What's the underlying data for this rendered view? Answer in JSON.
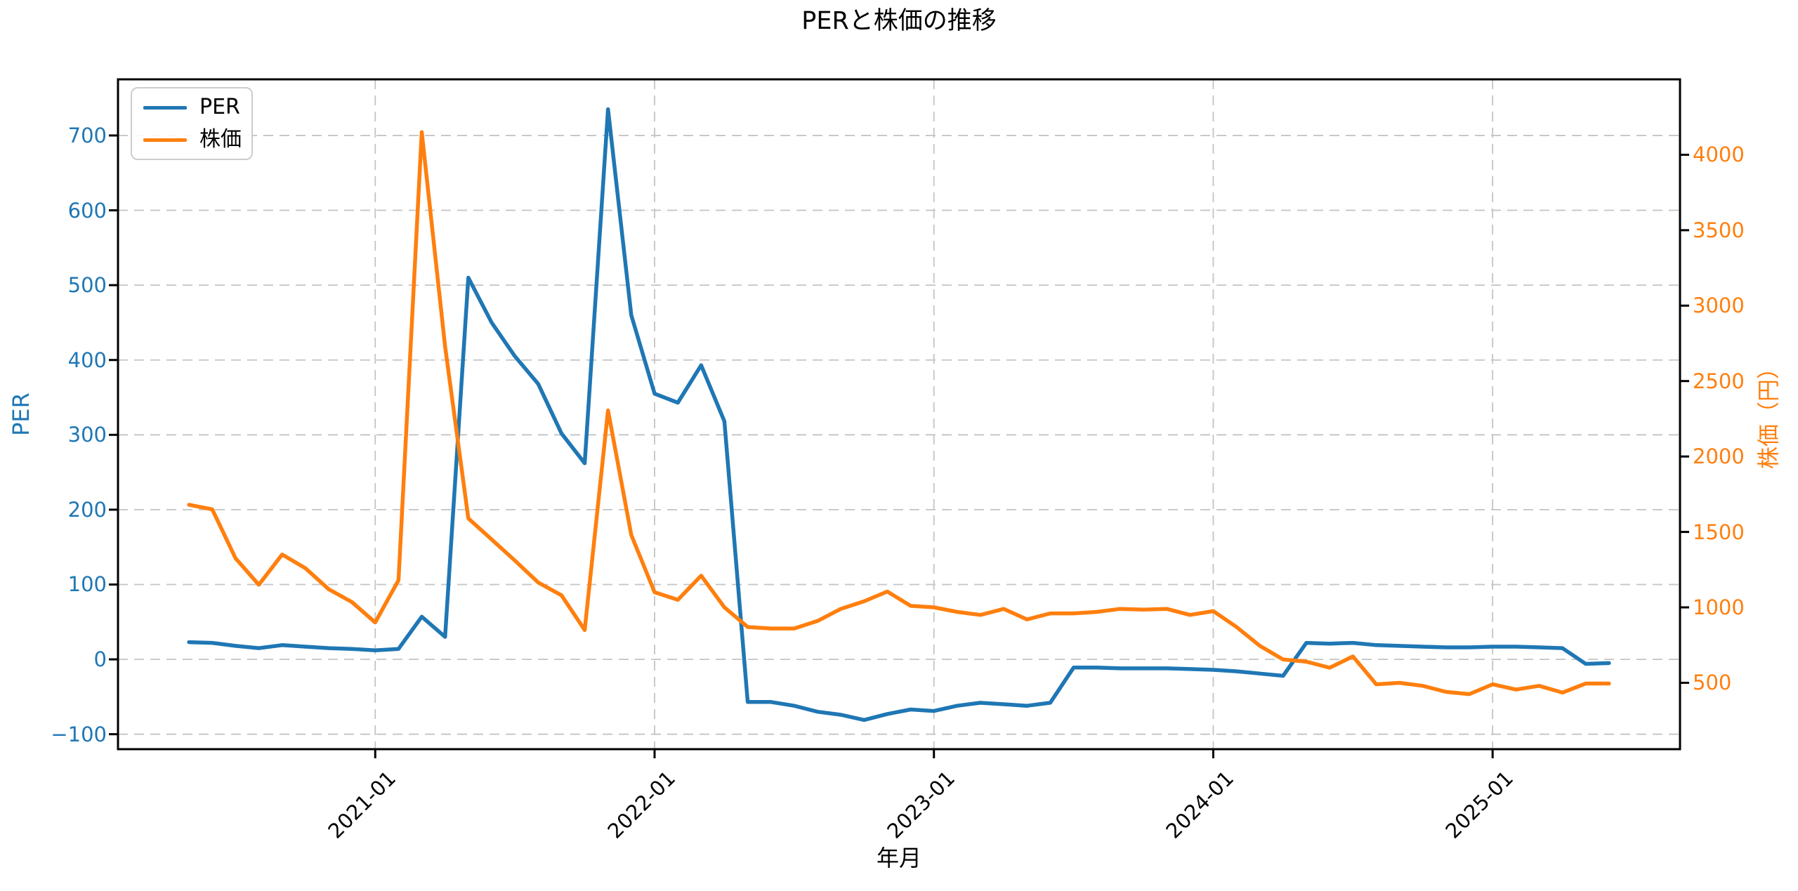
{
  "chart_data": {
    "type": "line",
    "title": "PERと株価の推移",
    "xlabel": "年月",
    "ylabel_left": "PER",
    "ylabel_right": "株価（円）",
    "grid": true,
    "grid_color": "#c4c4c4",
    "legend_position": "upper-left",
    "axis_label_colors": {
      "left": "#1f77b4",
      "right": "#ff7f0e",
      "x": "#000000"
    },
    "x": [
      "2020-05",
      "2020-06",
      "2020-07",
      "2020-08",
      "2020-09",
      "2020-10",
      "2020-11",
      "2020-12",
      "2021-01",
      "2021-02",
      "2021-03",
      "2021-04",
      "2021-05",
      "2021-06",
      "2021-07",
      "2021-08",
      "2021-09",
      "2021-10",
      "2021-11",
      "2021-12",
      "2022-01",
      "2022-02",
      "2022-03",
      "2022-04",
      "2022-05",
      "2022-06",
      "2022-07",
      "2022-08",
      "2022-09",
      "2022-10",
      "2022-11",
      "2022-12",
      "2023-01",
      "2023-02",
      "2023-03",
      "2023-04",
      "2023-05",
      "2023-06",
      "2023-07",
      "2023-08",
      "2023-09",
      "2023-10",
      "2023-11",
      "2023-12",
      "2024-01",
      "2024-02",
      "2024-03",
      "2024-04",
      "2024-05",
      "2024-06",
      "2024-07",
      "2024-08",
      "2024-09",
      "2024-10",
      "2024-11",
      "2024-12",
      "2025-01",
      "2025-02",
      "2025-03",
      "2025-04",
      "2025-05",
      "2025-06"
    ],
    "series": [
      {
        "name": "PER",
        "axis": "left",
        "color": "#1f77b4",
        "values": [
          23,
          22,
          18,
          15,
          19,
          17,
          15,
          14,
          12,
          14,
          57,
          30,
          510,
          450,
          405,
          368,
          302,
          262,
          735,
          460,
          355,
          343,
          393,
          318,
          -57,
          -57,
          -62,
          -70,
          -74,
          -81,
          -73,
          -67,
          -69,
          -62,
          -58,
          -60,
          -62,
          -58,
          -11,
          -11,
          -12,
          -12,
          -12,
          -13,
          -14,
          -16,
          -19,
          -22,
          22,
          21,
          22,
          19,
          18,
          17,
          16,
          16,
          17,
          17,
          16,
          15,
          -6,
          -5
        ]
      },
      {
        "name": "株価",
        "axis": "right",
        "color": "#ff7f0e",
        "values": [
          1680,
          1650,
          1325,
          1150,
          1350,
          1260,
          1120,
          1035,
          900,
          1180,
          4150,
          2730,
          1590,
          1450,
          1310,
          1165,
          1080,
          850,
          2305,
          1480,
          1100,
          1050,
          1210,
          1000,
          870,
          860,
          860,
          910,
          990,
          1040,
          1105,
          1010,
          1000,
          970,
          950,
          990,
          920,
          960,
          960,
          970,
          990,
          985,
          990,
          950,
          975,
          870,
          745,
          655,
          640,
          600,
          675,
          490,
          500,
          480,
          440,
          425,
          490,
          455,
          480,
          435,
          495,
          495
        ]
      }
    ],
    "x_ticks": [
      {
        "label": "2021-01",
        "index": 8
      },
      {
        "label": "2022-01",
        "index": 20
      },
      {
        "label": "2023-01",
        "index": 32
      },
      {
        "label": "2024-01",
        "index": 44
      },
      {
        "label": "2025-01",
        "index": 56
      }
    ],
    "x_margin_months": 3.05,
    "y_left": {
      "ticks": [
        -100,
        0,
        100,
        200,
        300,
        400,
        500,
        600,
        700
      ],
      "lim": [
        -120,
        775
      ]
    },
    "y_right": {
      "ticks": [
        500,
        1000,
        1500,
        2000,
        2500,
        3000,
        3500,
        4000
      ],
      "lim": [
        60,
        4500
      ]
    }
  }
}
